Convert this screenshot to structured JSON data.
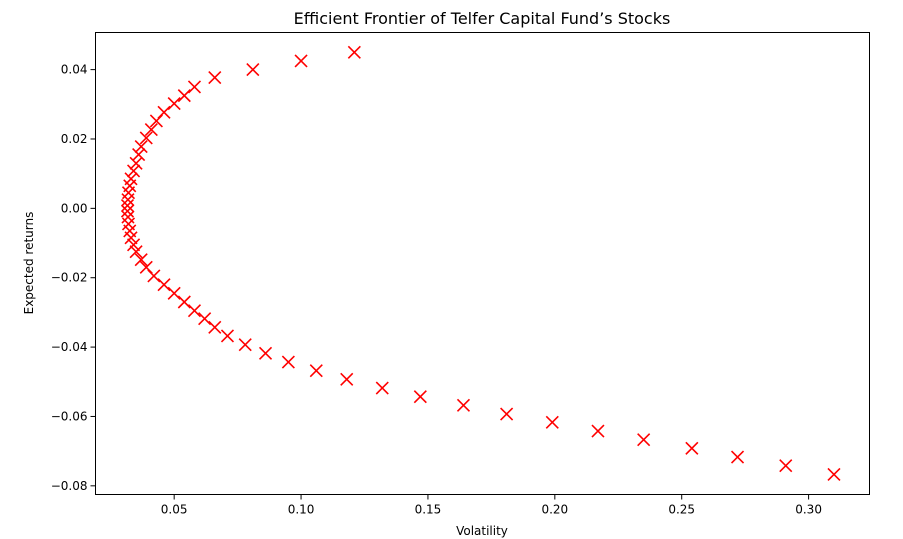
{
  "chart_data": {
    "type": "scatter",
    "title": "Efficient Frontier of Telfer Capital Fund’s Stocks",
    "xlabel": "Volatility",
    "ylabel": "Expected returns",
    "xlim": [
      0.019,
      0.324
    ],
    "ylim": [
      -0.0825,
      0.0507
    ],
    "xticks": [
      0.05,
      0.1,
      0.15,
      0.2,
      0.25,
      0.3
    ],
    "xtick_labels": [
      "0.05",
      "0.10",
      "0.15",
      "0.20",
      "0.25",
      "0.30"
    ],
    "yticks": [
      -0.08,
      -0.06,
      -0.04,
      -0.02,
      0.0,
      0.02,
      0.04
    ],
    "ytick_labels": [
      "−0.08",
      "−0.06",
      "−0.04",
      "−0.02",
      "0.00",
      "0.02",
      "0.04"
    ],
    "grid": false,
    "marker": "x",
    "marker_color": "#ff0000",
    "series": [
      {
        "points": [
          [
            0.121,
            0.045
          ],
          [
            0.1,
            0.0425
          ],
          [
            0.081,
            0.04
          ],
          [
            0.066,
            0.0377
          ],
          [
            0.058,
            0.035
          ],
          [
            0.054,
            0.0325
          ],
          [
            0.05,
            0.0302
          ],
          [
            0.046,
            0.0277
          ],
          [
            0.043,
            0.0252
          ],
          [
            0.041,
            0.0227
          ],
          [
            0.039,
            0.0203
          ],
          [
            0.037,
            0.0178
          ],
          [
            0.036,
            0.0155
          ],
          [
            0.035,
            0.013
          ],
          [
            0.034,
            0.0108
          ],
          [
            0.033,
            0.0085
          ],
          [
            0.0325,
            0.0065
          ],
          [
            0.032,
            0.0045
          ],
          [
            0.0318,
            0.0025
          ],
          [
            0.0316,
            0.0008
          ],
          [
            0.0316,
            -0.0008
          ],
          [
            0.0318,
            -0.0025
          ],
          [
            0.032,
            -0.0045
          ],
          [
            0.0325,
            -0.0065
          ],
          [
            0.033,
            -0.0085
          ],
          [
            0.034,
            -0.0105
          ],
          [
            0.035,
            -0.0125
          ],
          [
            0.037,
            -0.0148
          ],
          [
            0.039,
            -0.017
          ],
          [
            0.042,
            -0.0195
          ],
          [
            0.046,
            -0.022
          ],
          [
            0.05,
            -0.0245
          ],
          [
            0.054,
            -0.027
          ],
          [
            0.058,
            -0.0295
          ],
          [
            0.062,
            -0.0318
          ],
          [
            0.066,
            -0.0343
          ],
          [
            0.071,
            -0.0368
          ],
          [
            0.078,
            -0.0393
          ],
          [
            0.086,
            -0.0418
          ],
          [
            0.095,
            -0.0443
          ],
          [
            0.106,
            -0.0468
          ],
          [
            0.118,
            -0.0493
          ],
          [
            0.132,
            -0.0518
          ],
          [
            0.147,
            -0.0543
          ],
          [
            0.164,
            -0.0568
          ],
          [
            0.181,
            -0.0593
          ],
          [
            0.199,
            -0.0617
          ],
          [
            0.217,
            -0.0642
          ],
          [
            0.235,
            -0.0667
          ],
          [
            0.254,
            -0.0692
          ],
          [
            0.272,
            -0.0717
          ],
          [
            0.291,
            -0.0742
          ],
          [
            0.31,
            -0.0767
          ]
        ]
      }
    ]
  }
}
